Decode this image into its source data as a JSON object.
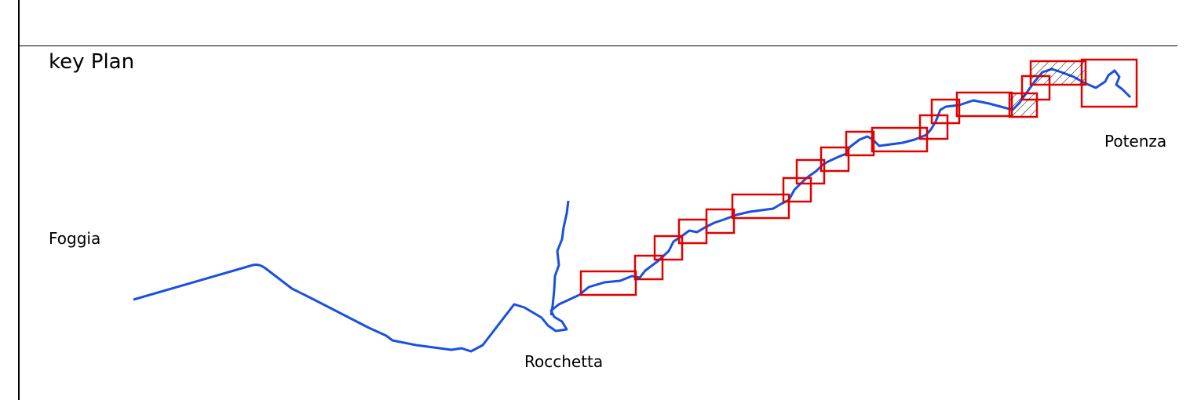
{
  "title": "key Plan",
  "places": {
    "foggia": "Foggia",
    "rocchetta": "Rocchetta",
    "potenza": "Potenza"
  },
  "colors": {
    "route": "#1a4fe0",
    "box": "#e00000",
    "hatch": "#000000",
    "frame": "#000000"
  },
  "legend_items": {
    "sheet_box": "red-rectangle-icon",
    "hatched_box": "hatched-rectangle-icon"
  }
}
